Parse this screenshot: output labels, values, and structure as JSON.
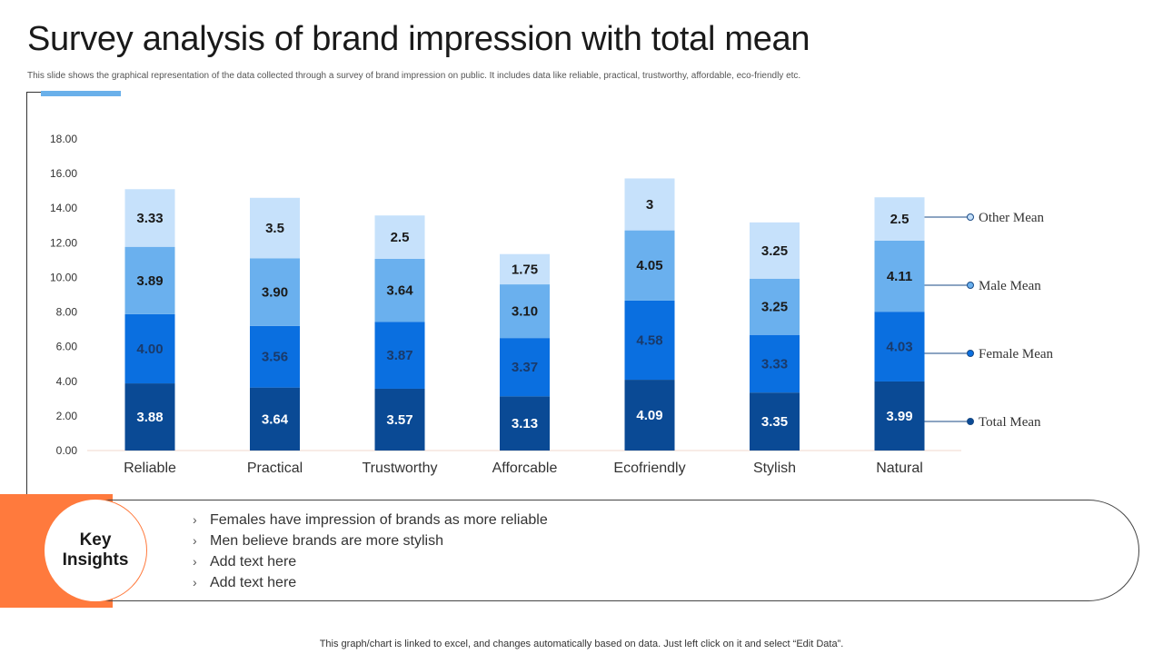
{
  "header": {
    "title": "Survey analysis of brand impression with total mean",
    "subtitle": "This slide shows the graphical representation of the data collected through a survey of brand impression on public. It includes data like reliable, practical, trustworthy, affordable, eco-friendly etc."
  },
  "chart_data": {
    "type": "bar",
    "stacked": true,
    "title": "",
    "xlabel": "",
    "ylabel": "",
    "ylim": [
      0,
      18
    ],
    "yticks": [
      "0.00",
      "2.00",
      "4.00",
      "6.00",
      "8.00",
      "10.00",
      "12.00",
      "14.00",
      "16.00",
      "18.00"
    ],
    "categories": [
      "Reliable",
      "Practical",
      "Trustworthy",
      "Afforcable",
      "Ecofriendly",
      "Stylish",
      "Natural"
    ],
    "series": [
      {
        "name": "Total Mean",
        "color": "#0a4a95",
        "values": [
          3.88,
          3.64,
          3.57,
          3.13,
          4.09,
          3.35,
          3.99
        ],
        "labels": [
          "3.88",
          "3.64",
          "3.57",
          "3.13",
          "4.09",
          "3.35",
          "3.99"
        ]
      },
      {
        "name": "Female Mean",
        "color": "#0a6fe0",
        "values": [
          4.0,
          3.56,
          3.87,
          3.37,
          4.58,
          3.33,
          4.03
        ],
        "labels": [
          "4.00",
          "3.56",
          "3.87",
          "3.37",
          "4.58",
          "3.33",
          "4.03"
        ]
      },
      {
        "name": "Male Mean",
        "color": "#6ab0ee",
        "values": [
          3.89,
          3.9,
          3.64,
          3.1,
          4.05,
          3.25,
          4.11
        ],
        "labels": [
          "3.89",
          "3.90",
          "3.64",
          "3.10",
          "4.05",
          "3.25",
          "4.11"
        ]
      },
      {
        "name": "Other Mean",
        "color": "#c6e1fb",
        "values": [
          3.33,
          3.5,
          2.5,
          1.75,
          3,
          3.25,
          2.5
        ],
        "labels": [
          "3.33",
          "3.5",
          "2.5",
          "1.75",
          "3",
          "3.25",
          "2.5"
        ]
      }
    ],
    "legend": "right"
  },
  "insights": {
    "heading": "Key Insights",
    "items": [
      "Females have impression of brands as more reliable",
      "Men believe brands are more stylish",
      "Add text here",
      "Add text here"
    ],
    "bullet": "›"
  },
  "footer": {
    "note": "This graph/chart is linked to excel, and changes automatically based on data. Just left click on it and select “Edit Data”."
  },
  "colors": {
    "accent": "#6ab0ea",
    "orange": "#ff7a3d"
  }
}
